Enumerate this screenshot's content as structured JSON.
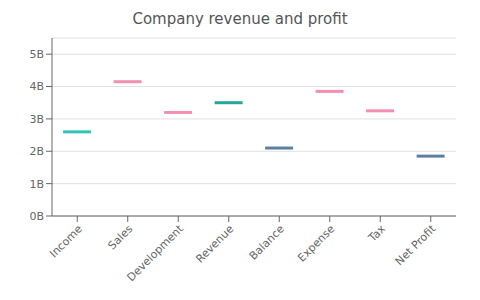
{
  "chart_data": {
    "type": "segment",
    "title": "Company revenue and profit",
    "categories": [
      "Income",
      "Sales",
      "Development",
      "Revenue",
      "Balance",
      "Expense",
      "Tax",
      "Net Profit"
    ],
    "values": [
      2.6,
      4.15,
      3.2,
      3.5,
      2.1,
      3.85,
      3.25,
      1.85
    ],
    "colors": [
      "#2ec4b6",
      "#f48fb1",
      "#f48fb1",
      "#26a69a",
      "#5c7fa3",
      "#f48fb1",
      "#f48fb1",
      "#5c7fa3"
    ],
    "ylim": [
      0,
      5.5
    ],
    "yticks": [
      {
        "value": 0,
        "label": "0B"
      },
      {
        "value": 1,
        "label": "1B"
      },
      {
        "value": 2,
        "label": "2B"
      },
      {
        "value": 3,
        "label": "3B"
      },
      {
        "value": 4,
        "label": "4B"
      },
      {
        "value": 5,
        "label": "5B"
      }
    ],
    "grid": true
  }
}
